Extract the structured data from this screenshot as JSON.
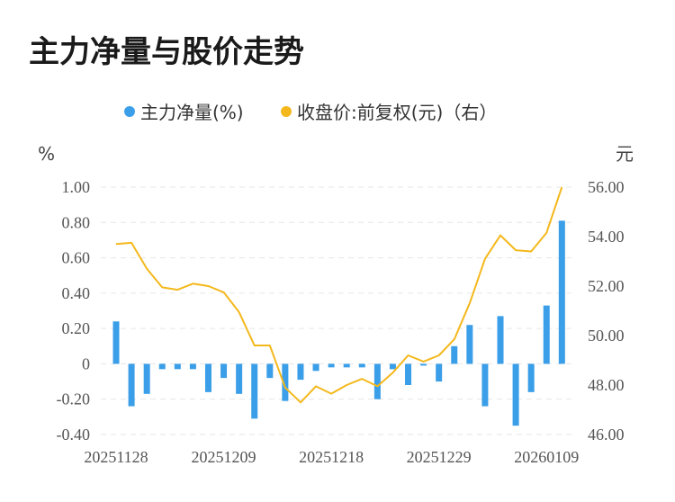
{
  "title": "主力净量与股价走势",
  "chart_data": {
    "type": "bar+line",
    "legend": [
      {
        "name": "主力净量(%)",
        "color": "#3a9ee8"
      },
      {
        "name": "收盘价:前复权(元)（右）",
        "color": "#f4b81c"
      }
    ],
    "y_left": {
      "unit": "%",
      "ticks": [
        "1.00",
        "0.80",
        "0.60",
        "0.40",
        "0.20",
        "0",
        "-0.20",
        "-0.40"
      ],
      "range": [
        -0.4,
        1.0
      ]
    },
    "y_right": {
      "unit": "元",
      "ticks": [
        "56.00",
        "54.00",
        "52.00",
        "50.00",
        "48.00",
        "46.00"
      ],
      "range": [
        46,
        56
      ]
    },
    "x_tick_labels": [
      "20251128",
      "20251209",
      "20251218",
      "20251229",
      "20260109"
    ],
    "x_tick_index": [
      0,
      7,
      14,
      21,
      28
    ],
    "net_volume": [
      0.24,
      -0.24,
      -0.17,
      -0.03,
      -0.03,
      -0.03,
      -0.16,
      -0.08,
      -0.17,
      -0.31,
      -0.08,
      -0.21,
      -0.09,
      -0.04,
      -0.02,
      -0.02,
      -0.02,
      -0.2,
      -0.03,
      -0.12,
      -0.01,
      -0.1,
      0.1,
      0.22,
      -0.24,
      0.27,
      -0.35,
      -0.16,
      0.33,
      0.81
    ],
    "close_price": [
      53.7,
      53.75,
      52.7,
      51.95,
      51.85,
      52.1,
      52.0,
      51.75,
      50.95,
      49.6,
      49.6,
      47.9,
      47.3,
      47.95,
      47.65,
      48.0,
      48.25,
      47.95,
      48.5,
      49.2,
      48.95,
      49.2,
      49.85,
      51.3,
      53.1,
      54.05,
      53.45,
      53.4,
      54.15,
      56.0
    ]
  }
}
